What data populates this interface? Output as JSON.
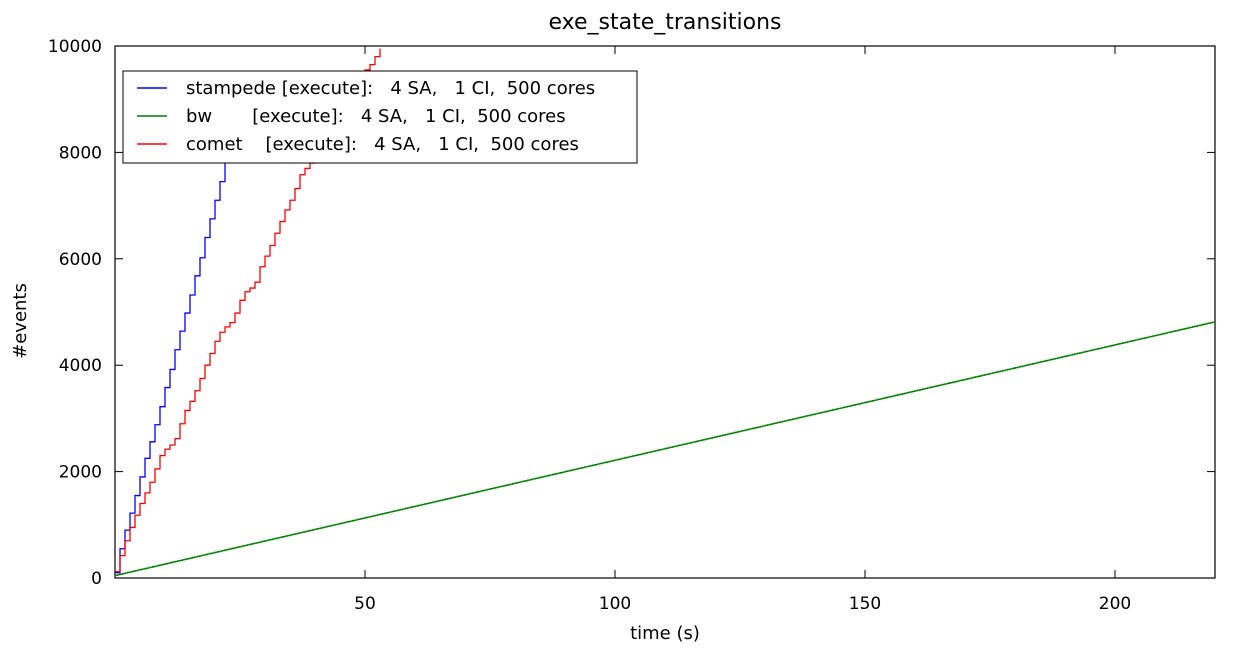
{
  "chart_data": {
    "type": "line",
    "title": "exe_state_transitions",
    "xlabel": "time (s)",
    "ylabel": "#events",
    "xlim": [
      0,
      220
    ],
    "ylim": [
      0,
      10000
    ],
    "x_ticks": [
      50,
      100,
      150,
      200
    ],
    "y_ticks": [
      0,
      2000,
      4000,
      6000,
      8000,
      10000
    ],
    "grid": false,
    "legend_position": "top-left",
    "series": [
      {
        "name": "stampede [execute]:   4 SA,   1 CI,  500 cores",
        "color": "#0000ff",
        "x": [
          0,
          1,
          2,
          3,
          4,
          5,
          6,
          7,
          8,
          9,
          10,
          11,
          12,
          13,
          14,
          15,
          16,
          17,
          18,
          19,
          20,
          21,
          22
        ],
        "y": [
          100,
          550,
          900,
          1220,
          1550,
          1900,
          2250,
          2560,
          2880,
          3220,
          3580,
          3920,
          4290,
          4640,
          4980,
          5320,
          5680,
          6020,
          6400,
          6750,
          7100,
          7450,
          7800
        ]
      },
      {
        "name": "bw       [execute]:   4 SA,   1 CI,  500 cores",
        "color": "#008000",
        "x": [
          0,
          220
        ],
        "y": [
          50,
          4820
        ]
      },
      {
        "name": "comet    [execute]:   4 SA,   1 CI,  500 cores",
        "color": "#ff0000",
        "x": [
          0,
          1,
          2,
          3,
          4,
          5,
          6,
          7,
          8,
          9,
          10,
          11,
          12,
          13,
          14,
          15,
          16,
          17,
          18,
          19,
          20,
          21,
          22,
          23,
          24,
          25,
          26,
          27,
          28,
          29,
          30,
          31,
          32,
          33,
          34,
          35,
          36,
          37,
          38,
          39,
          40,
          41,
          42,
          43,
          44,
          45,
          46,
          47,
          48,
          49,
          50,
          51,
          52,
          53
        ],
        "y": [
          120,
          420,
          700,
          950,
          1180,
          1400,
          1600,
          1800,
          2050,
          2300,
          2420,
          2500,
          2620,
          2900,
          3150,
          3320,
          3520,
          3750,
          4000,
          4220,
          4450,
          4620,
          4720,
          4800,
          4980,
          5220,
          5380,
          5450,
          5560,
          5850,
          6050,
          6250,
          6480,
          6700,
          6920,
          7100,
          7320,
          7580,
          7700,
          7800,
          7880,
          8000,
          8250,
          8400,
          8580,
          8750,
          8950,
          9100,
          9250,
          9400,
          9550,
          9650,
          9800,
          9950
        ]
      }
    ]
  }
}
